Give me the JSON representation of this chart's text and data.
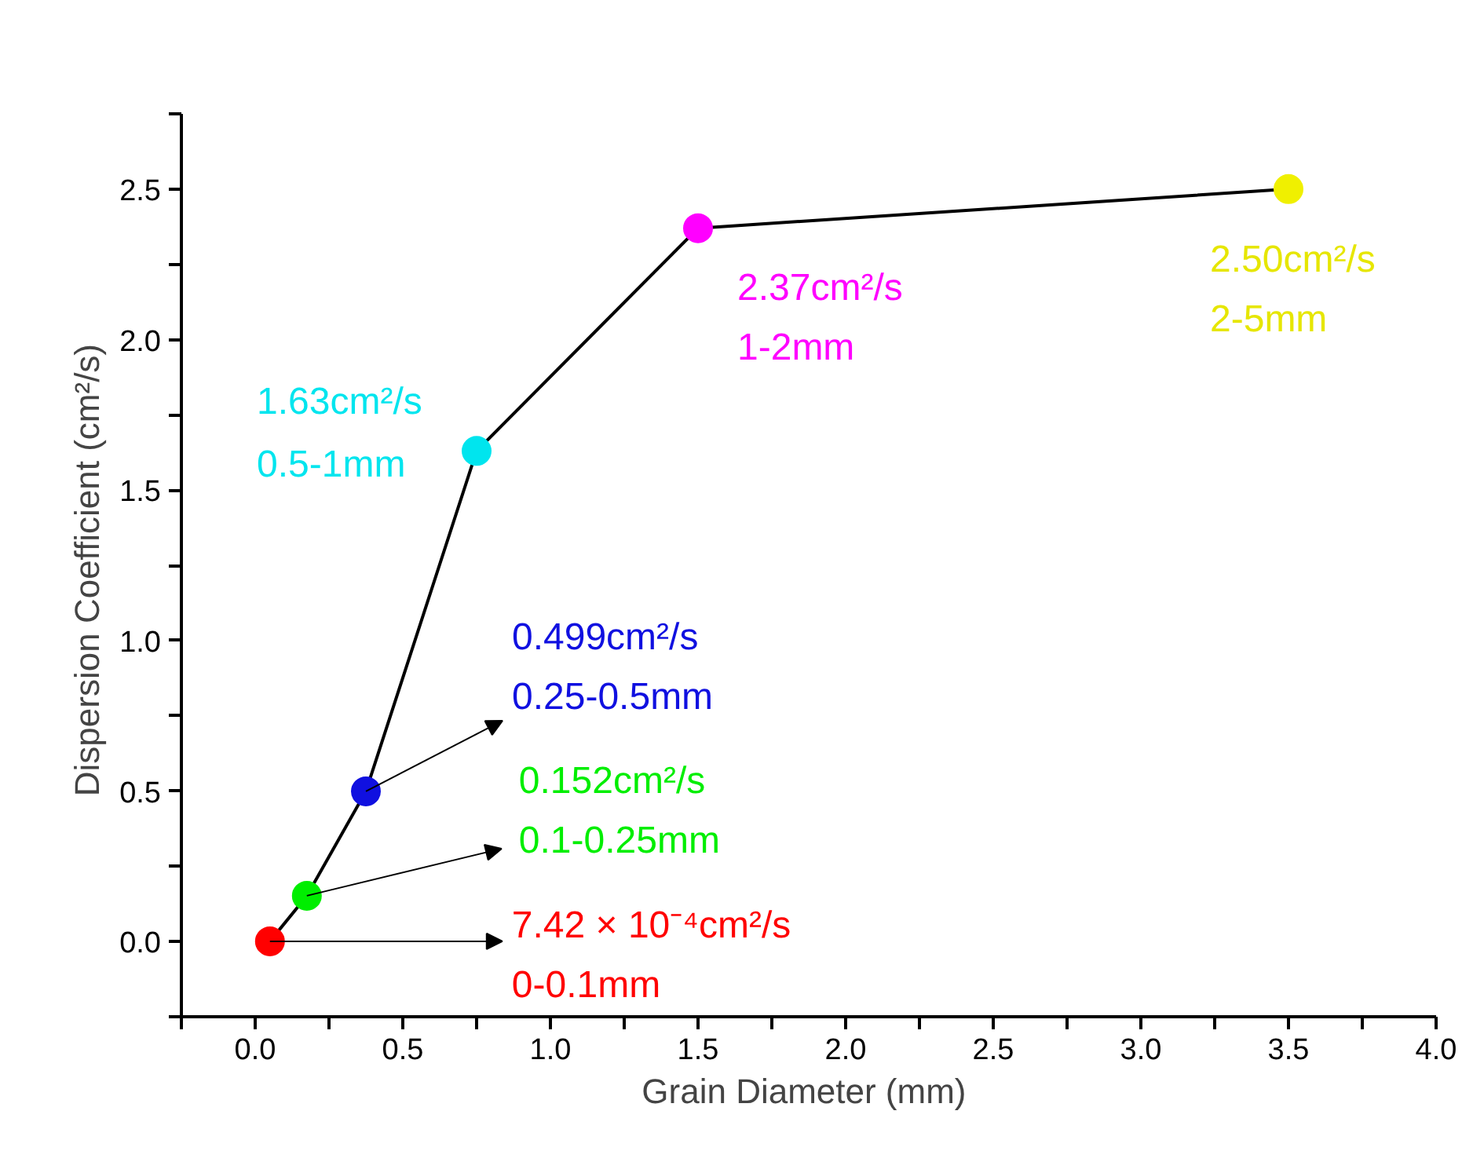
{
  "chart_data": {
    "type": "line",
    "xlabel": "Grain Diameter  (mm)",
    "ylabel": "Dispersion Coefficient  (cm²/s)",
    "x": [
      0.05,
      0.175,
      0.375,
      0.75,
      1.5,
      3.5
    ],
    "series": [
      {
        "color": "#000000",
        "colors": [
          "#ff0000",
          "#00ee00",
          "#1010e0",
          "#00e5ee",
          "#ff00ff",
          "#f0f000"
        ],
        "values": [
          0.000742,
          0.152,
          0.499,
          1.63,
          2.37,
          2.5
        ]
      }
    ],
    "marker": "circle",
    "line_style": "solid",
    "grid": false,
    "xlim": [
      -0.25,
      4.0
    ],
    "ylim": [
      -0.25,
      2.75
    ],
    "xticks": [
      {
        "value": -0.25,
        "label": null
      },
      {
        "value": 0,
        "label": "0.0"
      },
      {
        "value": 0.25,
        "label": null
      },
      0.5,
      {
        "value": 0.75,
        "label": null
      },
      {
        "value": 1,
        "label": "1.0"
      },
      {
        "value": 1.25,
        "label": null
      },
      1.5,
      {
        "value": 1.75,
        "label": null
      },
      {
        "value": 2,
        "label": "2.0"
      },
      {
        "value": 2.25,
        "label": null
      },
      2.5,
      {
        "value": 2.75,
        "label": null
      },
      {
        "value": 3,
        "label": "3.0"
      },
      {
        "value": 3.25,
        "label": null
      },
      3.5,
      {
        "value": 3.75,
        "label": null
      },
      {
        "value": 4,
        "label": "4.0"
      }
    ],
    "yticks": [
      {
        "value": -0.25,
        "label": null
      },
      {
        "value": 0,
        "label": "0.0"
      },
      {
        "value": 0.25,
        "label": null
      },
      0.5,
      {
        "value": 0.75,
        "label": null
      },
      {
        "value": 1,
        "label": "1.0"
      },
      {
        "value": 1.25,
        "label": null
      },
      1.5,
      {
        "value": 1.75,
        "label": null
      },
      {
        "value": 2,
        "label": "2.0"
      },
      {
        "value": 2.25,
        "label": null
      },
      2.5,
      {
        "value": 2.75,
        "label": null
      }
    ],
    "annotations": [
      {
        "text": "7.42 × 10⁻⁴cm²/s\n0-0.1mm",
        "x": 0.05,
        "y": 0.000742
      },
      {
        "text": "0.152cm²/s\n0.1-0.25mm",
        "x": 0.175,
        "y": 0.152
      },
      {
        "text": "0.499cm²/s\n0.25-0.5mm",
        "x": 0.375,
        "y": 0.499
      },
      {
        "text": "1.63cm²/s\n0.5-1mm",
        "x": 0.75,
        "y": 1.63
      },
      {
        "text": "2.37cm²/s\n1-2mm",
        "x": 1.5,
        "y": 2.37
      },
      {
        "text": "2.50cm²/s\n2-5mm",
        "x": 3.5,
        "y": 2.5
      }
    ]
  }
}
